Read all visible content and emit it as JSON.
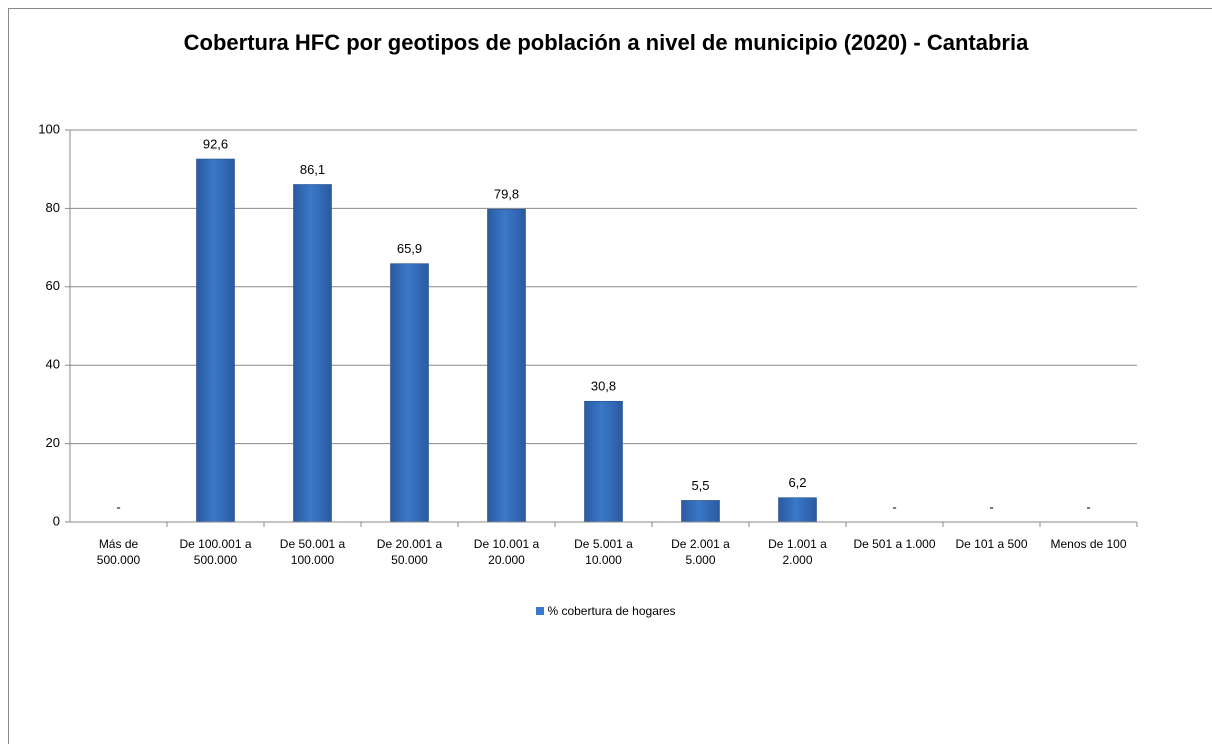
{
  "chart_data": {
    "type": "bar",
    "title": "Cobertura HFC por geotipos de población a nivel de municipio (2020) - Cantabria",
    "categories": [
      "Más de 500.000",
      "De 100.001 a 500.000",
      "De 50.001 a 100.000",
      "De 20.001 a 50.000",
      "De 10.001 a 20.000",
      "De 5.001 a 10.000",
      "De 2.001 a 5.000",
      "De 1.001 a 2.000",
      "De 501 a 1.000",
      "De 101 a 500",
      "Menos de 100"
    ],
    "series": [
      {
        "name": "% cobertura de hogares",
        "color": "#3a78c9",
        "values": [
          null,
          92.6,
          86.1,
          65.9,
          79.8,
          30.8,
          5.5,
          6.2,
          null,
          null,
          null
        ],
        "value_labels": [
          "-",
          "92,6",
          "86,1",
          "65,9",
          "79,8",
          "30,8",
          "5,5",
          "6,2",
          "-",
          "-",
          "-"
        ]
      }
    ],
    "ylim": [
      0,
      100
    ],
    "yticks": [
      0,
      20,
      40,
      60,
      80,
      100
    ],
    "grid": true,
    "legend": "bottom"
  }
}
